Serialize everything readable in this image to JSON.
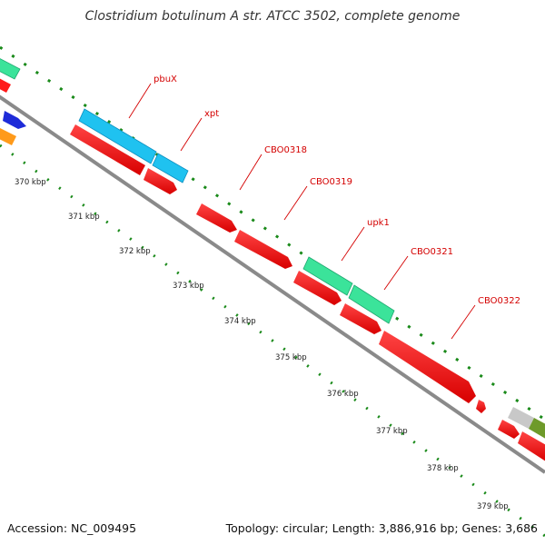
{
  "title": "Clostridium botulinum A str. ATCC 3502, complete genome",
  "footer": {
    "accession": "Accession: NC_009495",
    "info": "Topology: circular; Length: 3,886,916 bp; Genes: 3,686"
  },
  "colors": {
    "backbone": "#8a8a8a",
    "cds": "#ff1a1a",
    "cyan": "#1fc2f0",
    "green": "#3be39a",
    "blue": "#1e2bd8",
    "orange": "#ff9a1a",
    "grey": "#c8c8c8",
    "olive": "#6e9a2a",
    "tick": "#1a8a1a",
    "label_line": "#d40000"
  },
  "ticks": [
    {
      "label": "370 kbp"
    },
    {
      "label": "371 kbp"
    },
    {
      "label": "372 kbp"
    },
    {
      "label": "373 kbp"
    },
    {
      "label": "374 kbp"
    },
    {
      "label": "375 kbp"
    },
    {
      "label": "376 kbp"
    },
    {
      "label": "377 kbp"
    },
    {
      "label": "378 kbp"
    },
    {
      "label": "379 kbp"
    }
  ],
  "genes": [
    {
      "label": "pbuX"
    },
    {
      "label": "xpt"
    },
    {
      "label": "CBO0318"
    },
    {
      "label": "CBO0319"
    },
    {
      "label": "upk1"
    },
    {
      "label": "CBO0321"
    },
    {
      "label": "CBO0322"
    }
  ]
}
